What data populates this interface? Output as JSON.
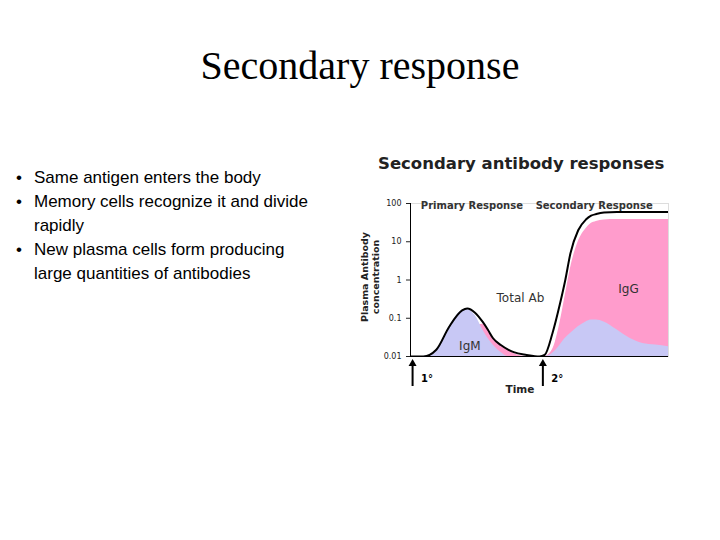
{
  "slide": {
    "title": "Secondary response",
    "bullets": [
      "Same antigen enters the body",
      "Memory cells recognize it and divide rapidly",
      "New plasma cells form producing large quantities of antibodies"
    ]
  },
  "chart_data": {
    "type": "area",
    "title": "Secondary antibody responses",
    "x_label": "Time",
    "y_label": "Plasma Antibody concentration",
    "log": "y",
    "tick_labels": "y",
    "xlim": [
      0,
      100
    ],
    "ylim": [
      0.01,
      100
    ],
    "yticks": [
      0.01,
      0.1,
      1,
      10,
      100
    ],
    "x": [
      0,
      5,
      10,
      15,
      20,
      22,
      25,
      28,
      30,
      32,
      35,
      38,
      40,
      45,
      50,
      52,
      55,
      58,
      60,
      62,
      65,
      68,
      70,
      72,
      75,
      80,
      85,
      90,
      95,
      100
    ],
    "series": [
      {
        "name": "Total Ab",
        "type": "line",
        "color": "#000000",
        "label_position": [
          42.6,
          0.34
        ],
        "values": [
          0.01,
          0.01,
          0.015,
          0.06,
          0.16,
          0.18,
          0.14,
          0.08,
          0.05,
          0.03,
          0.02,
          0.015,
          0.013,
          0.011,
          0.01,
          0.011,
          0.04,
          0.25,
          1,
          5,
          20,
          38,
          48,
          53,
          58,
          60,
          60,
          60,
          60,
          60
        ]
      },
      {
        "name": "IgG",
        "type": "area",
        "color": "#ff9ccc",
        "label_position": [
          84.5,
          0.58
        ],
        "values": [
          0.01,
          0.01,
          0.01,
          0.01,
          0.01,
          0.015,
          0.06,
          0.07,
          0.05,
          0.03,
          0.02,
          0.015,
          0.012,
          0.01,
          0.01,
          0.01,
          0.015,
          0.08,
          0.4,
          2,
          10,
          22,
          30,
          34,
          37,
          38,
          38,
          38,
          38,
          38
        ]
      },
      {
        "name": "IgM",
        "type": "area",
        "color": "#c8c8f5",
        "label_position": [
          23,
          0.019
        ],
        "values": [
          0.01,
          0.01,
          0.015,
          0.06,
          0.16,
          0.17,
          0.12,
          0.05,
          0.03,
          0.02,
          0.013,
          0.01,
          0.01,
          0.01,
          0.01,
          0.01,
          0.012,
          0.02,
          0.03,
          0.04,
          0.06,
          0.08,
          0.09,
          0.09,
          0.08,
          0.05,
          0.03,
          0.022,
          0.02,
          0.018
        ]
      }
    ],
    "annotations": [
      {
        "text": "Primary Response",
        "x": 4,
        "y": 85
      },
      {
        "text": "Secondary Response",
        "x": 48.5,
        "y": 85
      }
    ],
    "markers": [
      {
        "label": "1°",
        "x": 1
      },
      {
        "label": "2°",
        "x": 51.5
      }
    ]
  }
}
